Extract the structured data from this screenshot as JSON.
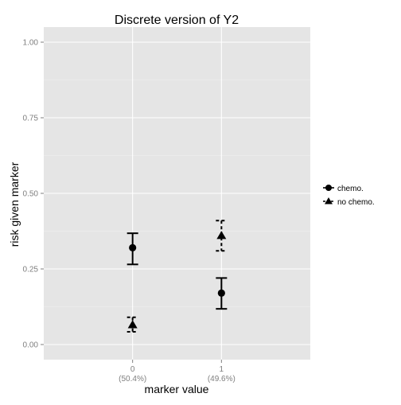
{
  "chart_data": {
    "type": "scatter",
    "title": "Discrete version of Y2",
    "xlabel": "marker value",
    "ylabel": "risk given marker",
    "categories": [
      "0",
      "1"
    ],
    "category_sublabels": [
      "(50.4%)",
      "(49.6%)"
    ],
    "ylim": [
      -0.05,
      1.05
    ],
    "y_ticks": [
      0.0,
      0.25,
      0.5,
      0.75,
      1.0
    ],
    "y_tick_labels": [
      "0.00",
      "0.25",
      "0.50",
      "0.75",
      "1.00"
    ],
    "grid": true,
    "legend_position": "right",
    "series": [
      {
        "name": "chemo.",
        "marker": "circle",
        "line_style": "solid",
        "points": [
          {
            "x": "0",
            "y": 0.32,
            "lower": 0.265,
            "upper": 0.368
          },
          {
            "x": "1",
            "y": 0.17,
            "lower": 0.118,
            "upper": 0.22
          }
        ]
      },
      {
        "name": "no chemo.",
        "marker": "triangle",
        "line_style": "dashed",
        "points": [
          {
            "x": "0",
            "y": 0.065,
            "lower": 0.042,
            "upper": 0.09
          },
          {
            "x": "1",
            "y": 0.36,
            "lower": 0.31,
            "upper": 0.41
          }
        ]
      }
    ],
    "colors": {
      "panel_background": "#e5e5e5",
      "grid_line": "#ffffff",
      "marks": "#000000",
      "tick_label": "#7f7f7f"
    }
  }
}
